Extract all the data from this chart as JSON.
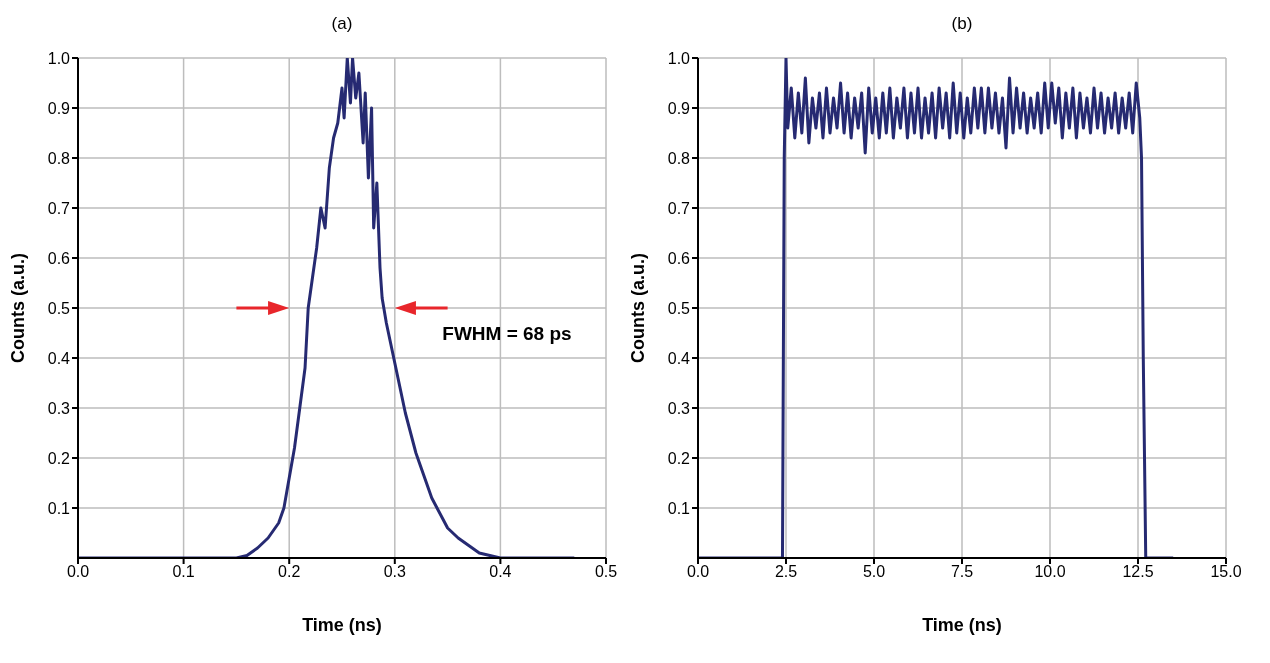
{
  "chart_data": [
    {
      "type": "line",
      "title": "(a)",
      "xlabel": "Time (ns)",
      "ylabel": "Counts (a.u.)",
      "grid": true,
      "xlim": [
        0,
        0.5
      ],
      "xticks": [
        {
          "value": 0,
          "label": "0.0"
        },
        0.1,
        0.2,
        0.3,
        0.4,
        0.5
      ],
      "ylim": [
        0,
        1
      ],
      "yticks": [
        0.1,
        0.2,
        0.3,
        0.4,
        0.5,
        0.6,
        0.7,
        0.8,
        0.9,
        {
          "value": 1,
          "label": "1.0"
        }
      ],
      "annotations": [
        "FWHM = 68 ps"
      ],
      "x": [
        0,
        0.15,
        0.16,
        0.17,
        0.18,
        0.19,
        0.195,
        0.2,
        0.205,
        0.21,
        0.215,
        0.218,
        0.222,
        0.226,
        0.23,
        0.234,
        0.238,
        0.242,
        0.246,
        0.25,
        0.252,
        0.255,
        0.258,
        0.26,
        0.263,
        0.266,
        0.27,
        0.272,
        0.275,
        0.278,
        0.28,
        0.283,
        0.286,
        0.288,
        0.292,
        0.296,
        0.3,
        0.305,
        0.31,
        0.315,
        0.32,
        0.325,
        0.33,
        0.335,
        0.34,
        0.345,
        0.35,
        0.36,
        0.37,
        0.38,
        0.39,
        0.4,
        0.47
      ],
      "series": [
        {
          "color": "#262a72",
          "values": [
            0,
            0,
            0.005,
            0.02,
            0.04,
            0.07,
            0.1,
            0.16,
            0.22,
            0.3,
            0.38,
            0.5,
            0.56,
            0.62,
            0.7,
            0.66,
            0.78,
            0.84,
            0.87,
            0.94,
            0.88,
            1.0,
            0.91,
            1.0,
            0.92,
            0.97,
            0.83,
            0.93,
            0.76,
            0.9,
            0.66,
            0.75,
            0.58,
            0.52,
            0.47,
            0.43,
            0.39,
            0.34,
            0.29,
            0.25,
            0.21,
            0.18,
            0.15,
            0.12,
            0.1,
            0.08,
            0.06,
            0.04,
            0.025,
            0.01,
            0.005,
            0,
            0
          ]
        }
      ]
    },
    {
      "type": "line",
      "title": "(b)",
      "xlabel": "Time (ns)",
      "ylabel": "Counts (a.u.)",
      "grid": true,
      "xlim": [
        0,
        15
      ],
      "xticks": [
        {
          "value": 0,
          "label": "0.0"
        },
        2.5,
        {
          "value": 5,
          "label": "5.0"
        },
        7.5,
        {
          "value": 10,
          "label": "10.0"
        },
        12.5,
        {
          "value": 15,
          "label": "15.0"
        }
      ],
      "ylim": [
        0,
        1
      ],
      "yticks": [
        0.1,
        0.2,
        0.3,
        0.4,
        0.5,
        0.6,
        0.7,
        0.8,
        0.9,
        {
          "value": 1,
          "label": "1.0"
        }
      ],
      "x": [
        0,
        2.4,
        2.45,
        2.5,
        2.55,
        2.65,
        2.75,
        2.85,
        2.95,
        3.05,
        3.15,
        3.25,
        3.35,
        3.45,
        3.55,
        3.65,
        3.75,
        3.85,
        3.95,
        4.05,
        4.15,
        4.25,
        4.35,
        4.45,
        4.55,
        4.65,
        4.75,
        4.85,
        4.95,
        5.05,
        5.15,
        5.25,
        5.35,
        5.45,
        5.55,
        5.65,
        5.75,
        5.85,
        5.95,
        6.05,
        6.15,
        6.25,
        6.35,
        6.45,
        6.55,
        6.65,
        6.75,
        6.85,
        6.95,
        7.05,
        7.15,
        7.25,
        7.35,
        7.45,
        7.55,
        7.65,
        7.75,
        7.85,
        7.95,
        8.05,
        8.15,
        8.25,
        8.35,
        8.45,
        8.55,
        8.65,
        8.75,
        8.85,
        8.95,
        9.05,
        9.15,
        9.25,
        9.35,
        9.45,
        9.55,
        9.65,
        9.75,
        9.85,
        9.95,
        10.05,
        10.15,
        10.25,
        10.35,
        10.45,
        10.55,
        10.65,
        10.75,
        10.85,
        10.95,
        11.05,
        11.15,
        11.25,
        11.35,
        11.45,
        11.55,
        11.65,
        11.75,
        11.85,
        11.95,
        12.05,
        12.15,
        12.25,
        12.35,
        12.45,
        12.55,
        12.6,
        12.65,
        12.72,
        13.5
      ],
      "series": [
        {
          "color": "#262a72",
          "values": [
            0,
            0,
            0.8,
            1.0,
            0.86,
            0.94,
            0.84,
            0.93,
            0.85,
            0.96,
            0.83,
            0.92,
            0.86,
            0.93,
            0.84,
            0.94,
            0.85,
            0.92,
            0.86,
            0.95,
            0.85,
            0.93,
            0.84,
            0.92,
            0.86,
            0.93,
            0.81,
            0.94,
            0.85,
            0.92,
            0.84,
            0.93,
            0.85,
            0.94,
            0.84,
            0.92,
            0.86,
            0.94,
            0.84,
            0.93,
            0.85,
            0.94,
            0.84,
            0.92,
            0.85,
            0.93,
            0.84,
            0.94,
            0.86,
            0.93,
            0.84,
            0.95,
            0.85,
            0.93,
            0.84,
            0.92,
            0.85,
            0.94,
            0.86,
            0.94,
            0.85,
            0.94,
            0.86,
            0.93,
            0.85,
            0.92,
            0.82,
            0.96,
            0.85,
            0.94,
            0.86,
            0.93,
            0.85,
            0.92,
            0.86,
            0.93,
            0.85,
            0.95,
            0.86,
            0.95,
            0.87,
            0.94,
            0.84,
            0.93,
            0.86,
            0.94,
            0.84,
            0.93,
            0.86,
            0.92,
            0.85,
            0.94,
            0.86,
            0.93,
            0.85,
            0.92,
            0.86,
            0.93,
            0.85,
            0.92,
            0.86,
            0.93,
            0.85,
            0.95,
            0.88,
            0.8,
            0.4,
            0,
            0
          ]
        }
      ]
    }
  ]
}
